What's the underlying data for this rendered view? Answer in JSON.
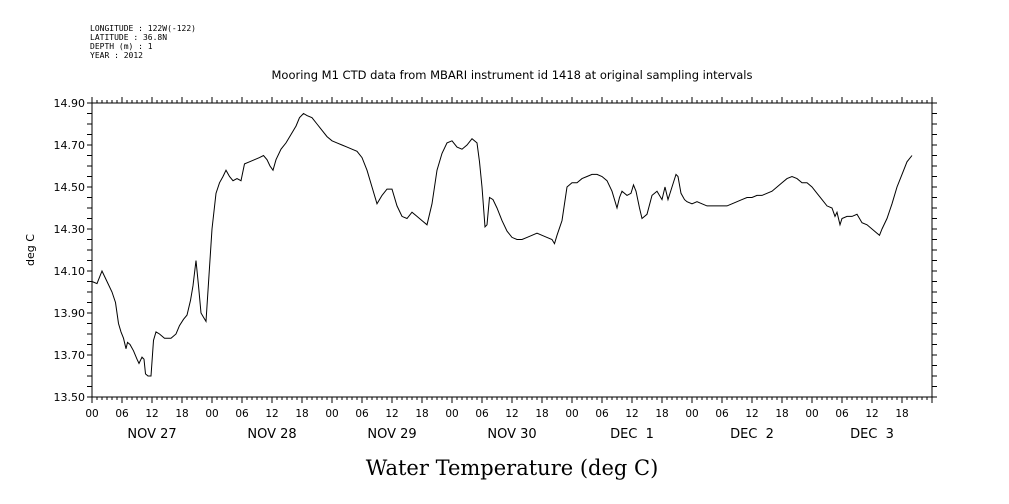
{
  "metadata": {
    "longitude": "LONGITUDE : 122W(-122)",
    "latitude": "LATITUDE : 36.8N",
    "depth": "DEPTH (m) : 1",
    "year": "YEAR : 2012"
  },
  "chart_data": {
    "type": "line",
    "title": "Mooring M1 CTD data from MBARI instrument id 1418 at original sampling intervals",
    "xlabel": "Water Temperature (deg C)",
    "ylabel": "deg C",
    "ylim": [
      13.5,
      14.9
    ],
    "yticks": [
      "13.50",
      "13.70",
      "13.90",
      "14.10",
      "14.30",
      "14.50",
      "14.70",
      "14.90"
    ],
    "xlim_hours": [
      0,
      168
    ],
    "hour_labels": [
      "00",
      "06",
      "12",
      "18"
    ],
    "day_labels": [
      "NOV 27",
      "NOV 28",
      "NOV 29",
      "NOV 30",
      "DEC  1",
      "DEC  2",
      "DEC  3"
    ],
    "x_units": "hours since NOV 27 00:00",
    "grid": false,
    "series": [
      {
        "values": [
          [
            0.0,
            14.05
          ],
          [
            1.0,
            14.04
          ],
          [
            2.0,
            14.1
          ],
          [
            3.0,
            14.05
          ],
          [
            4.0,
            14.0
          ],
          [
            4.7,
            13.95
          ],
          [
            5.3,
            13.85
          ],
          [
            5.8,
            13.81
          ],
          [
            6.3,
            13.78
          ],
          [
            6.8,
            13.73
          ],
          [
            7.1,
            13.76
          ],
          [
            7.6,
            13.75
          ],
          [
            8.3,
            13.72
          ],
          [
            9.0,
            13.68
          ],
          [
            9.4,
            13.66
          ],
          [
            10.0,
            13.69
          ],
          [
            10.4,
            13.68
          ],
          [
            10.7,
            13.61
          ],
          [
            11.2,
            13.6
          ],
          [
            11.8,
            13.6
          ],
          [
            12.3,
            13.77
          ],
          [
            12.8,
            13.81
          ],
          [
            13.5,
            13.8
          ],
          [
            14.5,
            13.78
          ],
          [
            15.8,
            13.78
          ],
          [
            16.8,
            13.8
          ],
          [
            17.5,
            13.84
          ],
          [
            18.3,
            13.87
          ],
          [
            19.0,
            13.89
          ],
          [
            19.7,
            13.96
          ],
          [
            20.2,
            14.03
          ],
          [
            20.8,
            14.15
          ],
          [
            21.3,
            14.03
          ],
          [
            21.8,
            13.9
          ],
          [
            22.3,
            13.88
          ],
          [
            22.8,
            13.86
          ],
          [
            23.4,
            14.08
          ],
          [
            24.0,
            14.3
          ],
          [
            24.8,
            14.47
          ],
          [
            25.5,
            14.52
          ],
          [
            26.2,
            14.55
          ],
          [
            26.8,
            14.58
          ],
          [
            27.5,
            14.55
          ],
          [
            28.2,
            14.53
          ],
          [
            29.0,
            14.54
          ],
          [
            29.8,
            14.53
          ],
          [
            30.5,
            14.61
          ],
          [
            31.5,
            14.62
          ],
          [
            32.5,
            14.63
          ],
          [
            33.5,
            14.64
          ],
          [
            34.3,
            14.65
          ],
          [
            35.0,
            14.63
          ],
          [
            35.6,
            14.6
          ],
          [
            36.2,
            14.58
          ],
          [
            36.8,
            14.63
          ],
          [
            37.8,
            14.68
          ],
          [
            38.8,
            14.71
          ],
          [
            39.8,
            14.75
          ],
          [
            40.8,
            14.79
          ],
          [
            41.5,
            14.83
          ],
          [
            42.3,
            14.85
          ],
          [
            43.0,
            14.84
          ],
          [
            44.0,
            14.83
          ],
          [
            45.0,
            14.8
          ],
          [
            46.0,
            14.77
          ],
          [
            47.0,
            14.74
          ],
          [
            48.0,
            14.72
          ],
          [
            49.0,
            14.71
          ],
          [
            50.0,
            14.7
          ],
          [
            51.0,
            14.69
          ],
          [
            52.0,
            14.68
          ],
          [
            53.0,
            14.67
          ],
          [
            54.0,
            14.64
          ],
          [
            55.0,
            14.58
          ],
          [
            56.0,
            14.5
          ],
          [
            57.0,
            14.42
          ],
          [
            58.0,
            14.46
          ],
          [
            59.0,
            14.49
          ],
          [
            60.0,
            14.49
          ],
          [
            61.0,
            14.41
          ],
          [
            62.0,
            14.36
          ],
          [
            63.0,
            14.35
          ],
          [
            64.0,
            14.38
          ],
          [
            65.0,
            14.36
          ],
          [
            66.0,
            14.34
          ],
          [
            67.0,
            14.32
          ],
          [
            68.0,
            14.42
          ],
          [
            69.0,
            14.58
          ],
          [
            70.0,
            14.66
          ],
          [
            71.0,
            14.71
          ],
          [
            72.0,
            14.72
          ],
          [
            73.0,
            14.69
          ],
          [
            74.0,
            14.68
          ],
          [
            75.0,
            14.7
          ],
          [
            76.0,
            14.73
          ],
          [
            77.0,
            14.71
          ],
          [
            77.5,
            14.62
          ],
          [
            78.0,
            14.5
          ],
          [
            78.6,
            14.31
          ],
          [
            79.0,
            14.32
          ],
          [
            79.5,
            14.45
          ],
          [
            80.2,
            14.44
          ],
          [
            81.0,
            14.4
          ],
          [
            82.0,
            14.34
          ],
          [
            83.0,
            14.29
          ],
          [
            84.0,
            14.26
          ],
          [
            85.0,
            14.25
          ],
          [
            86.0,
            14.25
          ],
          [
            87.0,
            14.26
          ],
          [
            88.0,
            14.27
          ],
          [
            89.0,
            14.28
          ],
          [
            90.0,
            14.27
          ],
          [
            91.0,
            14.26
          ],
          [
            92.0,
            14.25
          ],
          [
            92.5,
            14.23
          ],
          [
            93.0,
            14.27
          ],
          [
            94.0,
            14.34
          ],
          [
            95.0,
            14.5
          ],
          [
            96.0,
            14.52
          ],
          [
            97.0,
            14.52
          ],
          [
            98.0,
            14.54
          ],
          [
            99.0,
            14.55
          ],
          [
            100.0,
            14.56
          ],
          [
            101.0,
            14.56
          ],
          [
            102.0,
            14.55
          ],
          [
            103.0,
            14.53
          ],
          [
            104.0,
            14.48
          ],
          [
            105.0,
            14.4
          ],
          [
            105.5,
            14.45
          ],
          [
            106.0,
            14.48
          ],
          [
            107.0,
            14.46
          ],
          [
            107.8,
            14.47
          ],
          [
            108.3,
            14.51
          ],
          [
            108.8,
            14.48
          ],
          [
            109.5,
            14.4
          ],
          [
            110.0,
            14.35
          ],
          [
            111.0,
            14.37
          ],
          [
            112.0,
            14.46
          ],
          [
            113.0,
            14.48
          ],
          [
            114.0,
            14.44
          ],
          [
            114.6,
            14.5
          ],
          [
            115.2,
            14.44
          ],
          [
            116.0,
            14.5
          ],
          [
            116.8,
            14.56
          ],
          [
            117.2,
            14.55
          ],
          [
            117.8,
            14.47
          ],
          [
            118.5,
            14.44
          ],
          [
            119.0,
            14.43
          ],
          [
            120.0,
            14.42
          ],
          [
            121.0,
            14.43
          ],
          [
            122.0,
            14.42
          ],
          [
            123.0,
            14.41
          ],
          [
            124.0,
            14.41
          ],
          [
            125.0,
            14.41
          ],
          [
            126.0,
            14.41
          ],
          [
            127.0,
            14.41
          ],
          [
            128.0,
            14.42
          ],
          [
            129.0,
            14.43
          ],
          [
            130.0,
            14.44
          ],
          [
            131.0,
            14.45
          ],
          [
            132.0,
            14.45
          ],
          [
            133.0,
            14.46
          ],
          [
            134.0,
            14.46
          ],
          [
            135.0,
            14.47
          ],
          [
            136.0,
            14.48
          ],
          [
            137.0,
            14.5
          ],
          [
            138.0,
            14.52
          ],
          [
            139.0,
            14.54
          ],
          [
            140.0,
            14.55
          ],
          [
            141.0,
            14.54
          ],
          [
            142.0,
            14.52
          ],
          [
            143.0,
            14.52
          ],
          [
            144.0,
            14.5
          ],
          [
            145.0,
            14.47
          ],
          [
            146.0,
            14.44
          ],
          [
            147.0,
            14.41
          ],
          [
            148.0,
            14.4
          ],
          [
            148.6,
            14.36
          ],
          [
            149.0,
            14.38
          ],
          [
            149.6,
            14.32
          ],
          [
            150.0,
            14.35
          ],
          [
            151.0,
            14.36
          ],
          [
            152.0,
            14.36
          ],
          [
            153.0,
            14.37
          ],
          [
            154.0,
            14.33
          ],
          [
            155.0,
            14.32
          ],
          [
            156.0,
            14.3
          ],
          [
            157.0,
            14.28
          ],
          [
            157.5,
            14.27
          ],
          [
            158.0,
            14.3
          ],
          [
            159.0,
            14.35
          ],
          [
            160.0,
            14.42
          ],
          [
            161.0,
            14.5
          ],
          [
            162.0,
            14.56
          ],
          [
            163.0,
            14.62
          ],
          [
            164.0,
            14.65
          ]
        ]
      }
    ]
  }
}
